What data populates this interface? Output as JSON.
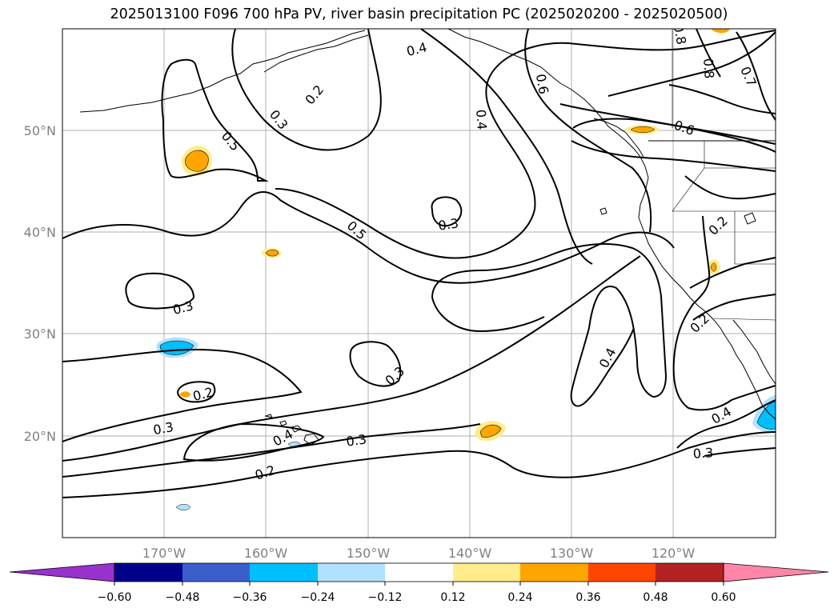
{
  "title": "2025013100 F096 700 hPa PV, river basin precipitation PC (2025020200 - 2025020500)",
  "axes": {
    "lon_ticks": [
      "170°W",
      "160°W",
      "150°W",
      "140°W",
      "130°W",
      "120°W"
    ],
    "lat_ticks": [
      "50°N",
      "40°N",
      "30°N",
      "20°N"
    ]
  },
  "contour_labels": [
    "0.4",
    "0.2",
    "0.3",
    "0.5",
    "0.4",
    "0.6",
    "0.8",
    "0.7",
    "0.5",
    "0.3",
    "0.3",
    "0.2",
    "0.3",
    "0.4",
    "0.2",
    "0.3",
    "0.4",
    "0.3",
    "0.2",
    "0.2",
    "0.4",
    "0.3",
    "0.8",
    "0.6"
  ],
  "colorbar": {
    "ticks": [
      "−0.60",
      "−0.48",
      "−0.36",
      "−0.24",
      "−0.12",
      "0.12",
      "0.24",
      "0.36",
      "0.48",
      "0.60"
    ],
    "colors": [
      "#9932cc",
      "#00008b",
      "#3a5fcd",
      "#00bfff",
      "#b0e2ff",
      "#ffffff",
      "#ffec8b",
      "#ffa500",
      "#ff4500",
      "#b22222",
      "#ff86a8"
    ]
  },
  "colors": {
    "coast": "#000000",
    "grid": "#b0b0b0",
    "tick_text": "#808080"
  }
}
